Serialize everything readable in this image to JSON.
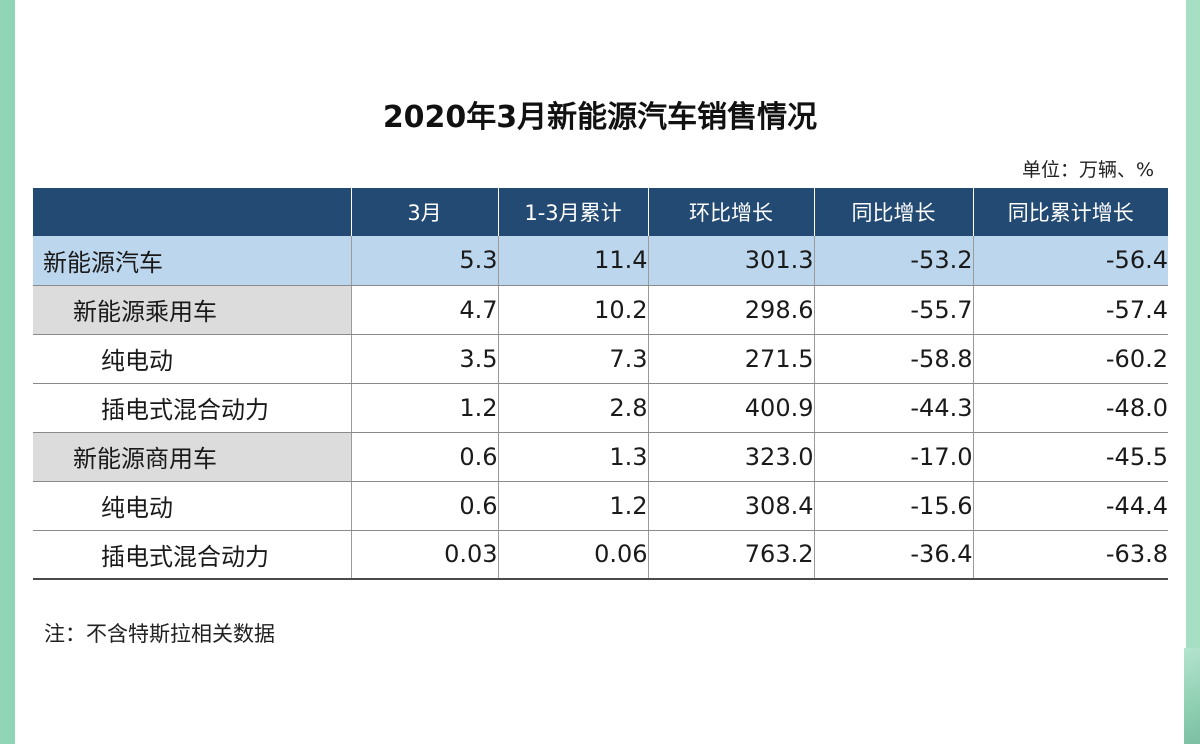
{
  "title": "2020年3月新能源汽车销售情况",
  "unit": "单位：万辆、%",
  "columns": [
    "",
    "3月",
    "1-3月累计",
    "环比增长",
    "同比增长",
    "同比累计增长"
  ],
  "rows": [
    {
      "label": "新能源汽车",
      "values": [
        "5.3",
        "11.4",
        "301.3",
        "-53.2",
        "-56.4"
      ]
    },
    {
      "label": "新能源乘用车",
      "values": [
        "4.7",
        "10.2",
        "298.6",
        "-55.7",
        "-57.4"
      ]
    },
    {
      "label": "纯电动",
      "values": [
        "3.5",
        "7.3",
        "271.5",
        "-58.8",
        "-60.2"
      ]
    },
    {
      "label": "插电式混合动力",
      "values": [
        "1.2",
        "2.8",
        "400.9",
        "-44.3",
        "-48.0"
      ]
    },
    {
      "label": "新能源商用车",
      "values": [
        "0.6",
        "1.3",
        "323.0",
        "-17.0",
        "-45.5"
      ]
    },
    {
      "label": "纯电动",
      "values": [
        "0.6",
        "1.2",
        "308.4",
        "-15.6",
        "-44.4"
      ]
    },
    {
      "label": "插电式混合动力",
      "values": [
        "0.03",
        "0.06",
        "763.2",
        "-36.4",
        "-63.8"
      ]
    }
  ],
  "note": "注：不含特斯拉相关数据",
  "colors": {
    "header_bg": "#234a72",
    "header_text": "#ffffff",
    "total_row_bg": "#bcd6ee",
    "subtotal_label_bg": "#dcdcdc",
    "edge_green": "#8fd5b6"
  }
}
